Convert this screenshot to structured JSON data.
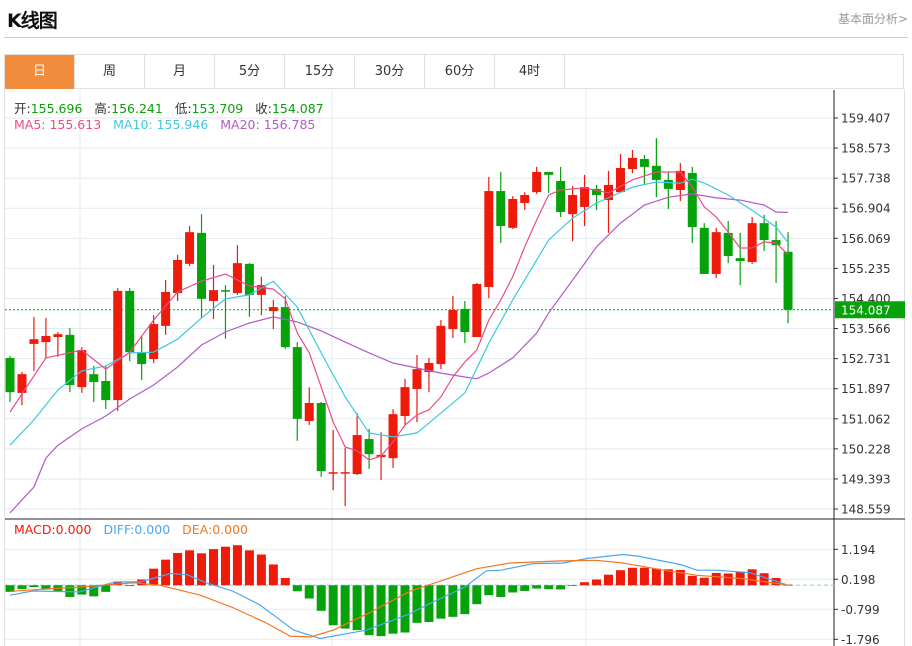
{
  "header": {
    "title": "K线图",
    "link": "基本面分析>"
  },
  "tabs": [
    {
      "label": "日",
      "active": true
    },
    {
      "label": "周"
    },
    {
      "label": "月"
    },
    {
      "label": "5分"
    },
    {
      "label": "15分"
    },
    {
      "label": "30分"
    },
    {
      "label": "60分"
    },
    {
      "label": "4时"
    }
  ],
  "ohlc": {
    "open_label": "开:",
    "open": "155.696",
    "high_label": "高:",
    "high": "156.241",
    "low_label": "低:",
    "low": "153.709",
    "close_label": "收:",
    "close": "154.087"
  },
  "ma": {
    "ma5_label": "MA5: 155.613",
    "ma10_label": "MA10: 155.946",
    "ma20_label": "MA20: 156.785"
  },
  "macd_info": {
    "macd": "MACD:0.000",
    "diff": "DIFF:0.000",
    "dea": "DEA:0.000"
  },
  "colors": {
    "up": "#ee1a0a",
    "down": "#05a20a",
    "ma5": "#ee4b86",
    "ma10": "#3ec8e0",
    "ma20": "#b45ac8",
    "diff": "#4aa8f0",
    "dea": "#f5761e",
    "accent": "#f08c3c"
  },
  "chart_data": {
    "type": "candlestick",
    "current_price": "154.087",
    "price_ticks": [
      "159.407",
      "158.573",
      "157.738",
      "156.904",
      "156.069",
      "155.235",
      "154.400",
      "153.566",
      "152.731",
      "151.897",
      "151.062",
      "150.228",
      "149.393",
      "148.559"
    ],
    "ylim": [
      148.559,
      159.407
    ],
    "candles": [
      [
        152.75,
        151.8,
        152.8,
        151.53
      ],
      [
        151.78,
        152.3,
        152.36,
        151.44
      ],
      [
        153.14,
        153.27,
        153.89,
        152.39
      ],
      [
        153.19,
        153.36,
        153.86,
        152.75
      ],
      [
        153.33,
        153.41,
        153.47,
        152.78
      ],
      [
        153.39,
        152.0,
        153.58,
        151.8
      ],
      [
        151.94,
        152.97,
        153.05,
        151.78
      ],
      [
        152.3,
        152.08,
        152.53,
        151.53
      ],
      [
        152.11,
        151.58,
        152.53,
        151.33
      ],
      [
        151.58,
        154.61,
        154.69,
        151.28
      ],
      [
        154.61,
        152.91,
        154.69,
        152.66
      ],
      [
        152.91,
        152.58,
        153.36,
        152.14
      ],
      [
        152.72,
        153.69,
        153.94,
        152.61
      ],
      [
        153.64,
        154.58,
        154.91,
        153.39
      ],
      [
        154.55,
        155.47,
        155.61,
        154.33
      ],
      [
        155.36,
        156.24,
        156.41,
        155.3
      ],
      [
        156.22,
        154.39,
        156.74,
        153.86
      ],
      [
        154.33,
        154.63,
        155.33,
        153.83
      ],
      [
        154.63,
        154.61,
        154.77,
        153.28
      ],
      [
        154.55,
        155.38,
        155.88,
        154.5
      ],
      [
        155.36,
        154.5,
        155.38,
        153.89
      ],
      [
        154.5,
        154.77,
        155.0,
        153.94
      ],
      [
        154.05,
        154.16,
        154.36,
        153.55
      ],
      [
        154.16,
        153.05,
        154.47,
        153.0
      ],
      [
        153.05,
        151.06,
        153.19,
        150.45
      ],
      [
        151.0,
        151.5,
        151.94,
        150.89
      ],
      [
        151.5,
        149.61,
        151.53,
        149.45
      ],
      [
        149.58,
        149.58,
        150.75,
        149.08
      ],
      [
        149.56,
        149.58,
        150.25,
        148.64
      ],
      [
        149.53,
        150.61,
        151.22,
        149.5
      ],
      [
        150.5,
        150.08,
        150.78,
        149.67
      ],
      [
        150.0,
        150.06,
        150.69,
        149.36
      ],
      [
        149.97,
        151.19,
        151.33,
        149.7
      ],
      [
        151.14,
        151.94,
        152.17,
        150.89
      ],
      [
        151.89,
        152.44,
        152.83,
        150.97
      ],
      [
        152.36,
        152.61,
        152.75,
        151.8
      ],
      [
        152.58,
        153.64,
        153.8,
        152.44
      ],
      [
        153.55,
        154.08,
        154.47,
        153.3
      ],
      [
        154.11,
        153.47,
        154.33,
        153.16
      ],
      [
        153.33,
        154.8,
        154.83,
        153.33
      ],
      [
        154.72,
        157.38,
        157.77,
        154.41
      ],
      [
        157.38,
        156.41,
        157.91,
        155.94
      ],
      [
        156.36,
        157.16,
        157.24,
        156.33
      ],
      [
        157.05,
        157.27,
        157.35,
        156.85
      ],
      [
        157.35,
        157.91,
        158.05,
        157.3
      ],
      [
        157.91,
        157.83,
        157.91,
        157.33
      ],
      [
        157.66,
        156.8,
        158.05,
        156.66
      ],
      [
        156.74,
        157.27,
        157.52,
        155.99
      ],
      [
        156.94,
        157.49,
        157.83,
        156.41
      ],
      [
        157.44,
        157.27,
        157.55,
        156.85
      ],
      [
        157.13,
        157.55,
        157.94,
        156.22
      ],
      [
        157.35,
        158.02,
        158.41,
        157.35
      ],
      [
        157.99,
        158.3,
        158.52,
        157.88
      ],
      [
        158.27,
        158.05,
        158.38,
        157.55
      ],
      [
        158.08,
        157.69,
        158.85,
        157.21
      ],
      [
        157.69,
        157.44,
        157.91,
        156.88
      ],
      [
        157.41,
        157.94,
        158.16,
        157.1
      ],
      [
        157.88,
        156.38,
        158.05,
        155.94
      ],
      [
        156.36,
        155.08,
        156.49,
        155.08
      ],
      [
        155.08,
        156.24,
        156.36,
        154.97
      ],
      [
        156.22,
        155.58,
        156.55,
        155.38
      ],
      [
        155.52,
        155.44,
        156.22,
        154.77
      ],
      [
        155.41,
        156.49,
        156.66,
        155.36
      ],
      [
        156.49,
        156.02,
        156.72,
        155.72
      ],
      [
        156.02,
        155.88,
        156.55,
        154.83
      ],
      [
        155.696,
        154.087,
        156.241,
        153.709
      ]
    ],
    "candle_fields": [
      "open",
      "close",
      "high",
      "low"
    ],
    "ma5": [
      [
        0,
        151.25
      ],
      [
        3,
        152.75
      ],
      [
        6,
        152.97
      ],
      [
        8,
        152.44
      ],
      [
        10,
        152.91
      ],
      [
        12,
        153.8
      ],
      [
        14,
        154.58
      ],
      [
        16,
        154.88
      ],
      [
        18,
        155.08
      ],
      [
        20,
        154.75
      ],
      [
        22,
        154.66
      ],
      [
        23,
        154.39
      ],
      [
        24,
        153.44
      ],
      [
        25,
        152.89
      ],
      [
        26,
        151.94
      ],
      [
        27,
        150.97
      ],
      [
        28,
        150.28
      ],
      [
        29,
        150.17
      ],
      [
        30,
        149.92
      ],
      [
        31,
        150.03
      ],
      [
        32,
        150.42
      ],
      [
        33,
        150.89
      ],
      [
        34,
        151.17
      ],
      [
        35,
        151.31
      ],
      [
        36,
        151.67
      ],
      [
        37,
        152.22
      ],
      [
        38,
        152.64
      ],
      [
        39,
        152.97
      ],
      [
        40,
        153.8
      ],
      [
        41,
        154.36
      ],
      [
        42,
        155.0
      ],
      [
        43,
        155.83
      ],
      [
        44,
        156.58
      ],
      [
        45,
        157.27
      ],
      [
        46,
        157.41
      ],
      [
        48,
        157.47
      ],
      [
        50,
        157.33
      ],
      [
        52,
        157.69
      ],
      [
        54,
        157.91
      ],
      [
        56,
        157.91
      ],
      [
        57,
        157.49
      ],
      [
        58,
        156.94
      ],
      [
        59,
        156.66
      ],
      [
        60,
        156.24
      ],
      [
        61,
        155.8
      ],
      [
        62,
        155.8
      ],
      [
        63,
        155.97
      ],
      [
        64,
        155.94
      ],
      [
        65,
        155.613
      ]
    ],
    "ma10": [
      [
        0,
        150.33
      ],
      [
        2,
        151.03
      ],
      [
        4,
        151.86
      ],
      [
        6,
        152.39
      ],
      [
        8,
        152.53
      ],
      [
        10,
        152.89
      ],
      [
        12,
        152.91
      ],
      [
        14,
        153.27
      ],
      [
        16,
        153.86
      ],
      [
        18,
        154.39
      ],
      [
        20,
        154.5
      ],
      [
        22,
        154.88
      ],
      [
        24,
        154.16
      ],
      [
        26,
        152.89
      ],
      [
        28,
        151.67
      ],
      [
        30,
        150.67
      ],
      [
        32,
        150.56
      ],
      [
        34,
        150.67
      ],
      [
        36,
        151.22
      ],
      [
        38,
        151.78
      ],
      [
        40,
        153.16
      ],
      [
        42,
        154.36
      ],
      [
        44,
        155.47
      ],
      [
        45,
        156.02
      ],
      [
        47,
        156.63
      ],
      [
        49,
        157.05
      ],
      [
        52,
        157.49
      ],
      [
        54,
        157.63
      ],
      [
        56,
        157.6
      ],
      [
        57,
        157.71
      ],
      [
        58,
        157.6
      ],
      [
        60,
        157.27
      ],
      [
        62,
        156.85
      ],
      [
        64,
        156.38
      ],
      [
        65,
        155.946
      ]
    ],
    "ma20": [
      [
        0,
        148.45
      ],
      [
        2,
        149.17
      ],
      [
        3,
        149.97
      ],
      [
        4,
        150.33
      ],
      [
        6,
        150.78
      ],
      [
        8,
        151.14
      ],
      [
        10,
        151.61
      ],
      [
        12,
        152.0
      ],
      [
        14,
        152.5
      ],
      [
        16,
        153.11
      ],
      [
        18,
        153.47
      ],
      [
        20,
        153.72
      ],
      [
        22,
        153.89
      ],
      [
        24,
        153.75
      ],
      [
        26,
        153.5
      ],
      [
        28,
        153.19
      ],
      [
        30,
        152.89
      ],
      [
        32,
        152.61
      ],
      [
        34,
        152.47
      ],
      [
        36,
        152.33
      ],
      [
        38,
        152.22
      ],
      [
        39,
        152.17
      ],
      [
        40,
        152.33
      ],
      [
        42,
        152.75
      ],
      [
        44,
        153.44
      ],
      [
        45,
        154.0
      ],
      [
        47,
        154.91
      ],
      [
        49,
        155.83
      ],
      [
        51,
        156.49
      ],
      [
        53,
        156.99
      ],
      [
        55,
        157.21
      ],
      [
        57,
        157.3
      ],
      [
        59,
        157.19
      ],
      [
        61,
        157.13
      ],
      [
        63,
        156.99
      ],
      [
        64,
        156.8
      ],
      [
        65,
        156.785
      ]
    ],
    "macd_ticks": [
      "1.194",
      "0.198",
      "-0.799",
      "-1.796"
    ],
    "macd_ylim": [
      -1.796,
      1.194
    ],
    "macd_hist": [
      -0.22,
      -0.13,
      -0.06,
      -0.14,
      -0.22,
      -0.39,
      -0.31,
      -0.37,
      -0.22,
      0.09,
      0.0,
      0.19,
      0.55,
      0.85,
      1.07,
      1.16,
      1.06,
      1.2,
      1.28,
      1.33,
      1.16,
      1.02,
      0.69,
      0.24,
      -0.2,
      -0.44,
      -0.85,
      -1.33,
      -1.44,
      -1.49,
      -1.66,
      -1.69,
      -1.61,
      -1.57,
      -1.25,
      -1.22,
      -1.11,
      -1.05,
      -0.96,
      -0.63,
      -0.33,
      -0.39,
      -0.24,
      -0.19,
      -0.11,
      -0.13,
      -0.14,
      -0.02,
      0.1,
      0.19,
      0.35,
      0.5,
      0.58,
      0.58,
      0.55,
      0.53,
      0.51,
      0.31,
      0.25,
      0.41,
      0.39,
      0.44,
      0.53,
      0.4,
      0.24,
      0.02
    ],
    "diff": [
      [
        0,
        -0.33
      ],
      [
        1.9,
        -0.19
      ],
      [
        5.8,
        -0.22
      ],
      [
        8.8,
        0.11
      ],
      [
        10.9,
        0.11
      ],
      [
        13.4,
        0.39
      ],
      [
        14.8,
        0.35
      ],
      [
        16.4,
        0.08
      ],
      [
        18.6,
        -0.19
      ],
      [
        20.9,
        -0.66
      ],
      [
        23.7,
        -1.49
      ],
      [
        25.9,
        -1.77
      ],
      [
        29.8,
        -1.49
      ],
      [
        33.4,
        -0.95
      ],
      [
        34.8,
        -0.66
      ],
      [
        38,
        -0.06
      ],
      [
        39.8,
        0.48
      ],
      [
        41,
        0.5
      ],
      [
        43.7,
        0.72
      ],
      [
        46.2,
        0.74
      ],
      [
        48.2,
        0.89
      ],
      [
        51.2,
        1.02
      ],
      [
        52.4,
        0.97
      ],
      [
        56,
        0.69
      ],
      [
        57.4,
        0.5
      ],
      [
        59,
        0.5
      ],
      [
        61.8,
        0.42
      ],
      [
        65,
        0.0
      ]
    ],
    "dea": [
      [
        0,
        -0.2
      ],
      [
        5.8,
        -0.06
      ],
      [
        10.3,
        0.08
      ],
      [
        12.5,
        0.0
      ],
      [
        15.9,
        -0.33
      ],
      [
        18.6,
        -0.74
      ],
      [
        21.4,
        -1.25
      ],
      [
        23.4,
        -1.69
      ],
      [
        25.1,
        -1.72
      ],
      [
        27,
        -1.49
      ],
      [
        29.8,
        -0.96
      ],
      [
        33.4,
        -0.2
      ],
      [
        36.2,
        0.17
      ],
      [
        39,
        0.55
      ],
      [
        41.8,
        0.74
      ],
      [
        46,
        0.81
      ],
      [
        49,
        0.83
      ],
      [
        51.2,
        0.74
      ],
      [
        54.6,
        0.5
      ],
      [
        57.4,
        0.33
      ],
      [
        61.2,
        0.22
      ],
      [
        65,
        0.0
      ]
    ]
  }
}
